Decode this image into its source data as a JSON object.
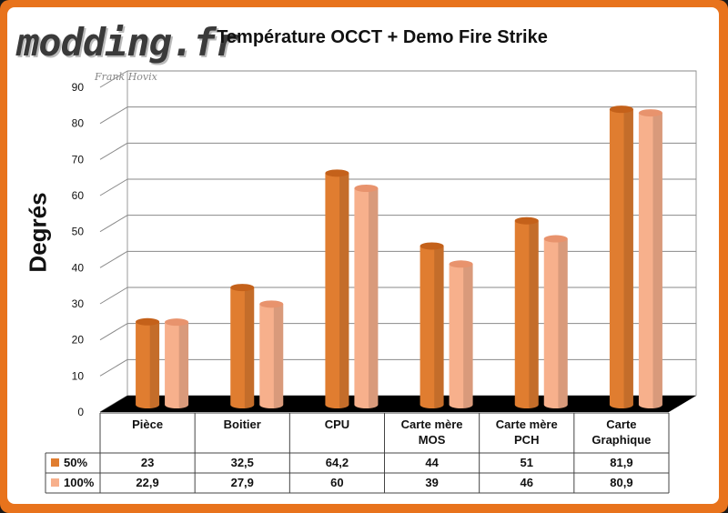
{
  "brand": {
    "logo": "modding.fr",
    "tagline": "Frank Hovix"
  },
  "chart_data": {
    "type": "bar",
    "title": "Température OCCT + Demo Fire Strike",
    "ylabel": "Degrés",
    "ylim": [
      0,
      90
    ],
    "yticks": [
      0,
      10,
      20,
      30,
      40,
      50,
      60,
      70,
      80,
      90
    ],
    "categories": [
      [
        "Pièce"
      ],
      [
        "Boitier"
      ],
      [
        "CPU"
      ],
      [
        "Carte mère",
        "MOS"
      ],
      [
        "Carte mère",
        "PCH"
      ],
      [
        "Carte",
        "Graphique"
      ]
    ],
    "series": [
      {
        "name": "50%",
        "values": [
          23,
          32.5,
          64.2,
          44,
          51,
          81.9
        ],
        "labels": [
          "23",
          "32,5",
          "64,2",
          "44",
          "51",
          "81,9"
        ],
        "color": "#e07d30",
        "top_color": "#c4611a"
      },
      {
        "name": "100%",
        "values": [
          22.9,
          27.9,
          60,
          39,
          46,
          80.9
        ],
        "labels": [
          "22,9",
          "27,9",
          "60",
          "39",
          "46",
          "80,9"
        ],
        "color": "#f7b08c",
        "top_color": "#e8936d"
      }
    ],
    "grid": true,
    "legend": "table"
  }
}
